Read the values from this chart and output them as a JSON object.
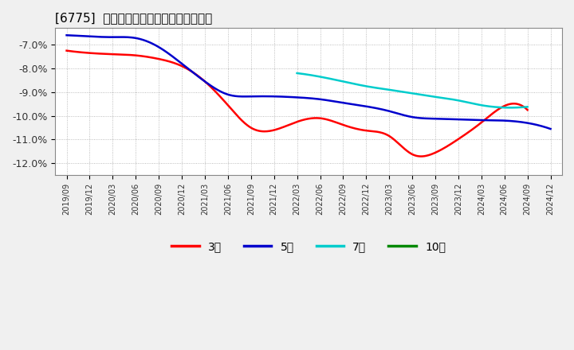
{
  "title": "[6775]  経常利益マージンの平均値の推移",
  "outer_bg": "#f0f0f0",
  "plot_bg": "#ffffff",
  "ylim": [
    -12.5,
    -6.3
  ],
  "yticks": [
    -12.0,
    -11.0,
    -10.0,
    -9.0,
    -8.0,
    -7.0
  ],
  "series_3": {
    "color": "#ff0000",
    "x": [
      0,
      1,
      2,
      3,
      4,
      5,
      6,
      7,
      8,
      9,
      10,
      11,
      12,
      13,
      14,
      15,
      16,
      17,
      18,
      19,
      20
    ],
    "y": [
      -7.25,
      -7.35,
      -7.4,
      -7.45,
      -7.6,
      -7.9,
      -8.55,
      -9.55,
      -10.5,
      -10.6,
      -10.25,
      -10.1,
      -10.38,
      -10.62,
      -10.85,
      -11.62,
      -11.55,
      -10.98,
      -10.28,
      -9.58,
      -9.75
    ]
  },
  "series_5": {
    "color": "#0000cc",
    "x": [
      0,
      1,
      2,
      3,
      4,
      5,
      6,
      7,
      8,
      9,
      10,
      11,
      12,
      13,
      14,
      15,
      16,
      17,
      18,
      19,
      20,
      21
    ],
    "y": [
      -6.6,
      -6.65,
      -6.68,
      -6.72,
      -7.1,
      -7.8,
      -8.55,
      -9.1,
      -9.18,
      -9.18,
      -9.22,
      -9.3,
      -9.45,
      -9.6,
      -9.8,
      -10.05,
      -10.12,
      -10.15,
      -10.18,
      -10.2,
      -10.3,
      -10.55
    ]
  },
  "series_7": {
    "color": "#00cccc",
    "x": [
      10,
      11,
      12,
      13,
      14,
      15,
      16,
      17,
      18,
      19,
      20
    ],
    "y": [
      -8.2,
      -8.35,
      -8.55,
      -8.75,
      -8.9,
      -9.05,
      -9.2,
      -9.35,
      -9.55,
      -9.65,
      -9.62
    ]
  },
  "series_10": {
    "color": "#008800",
    "x": [],
    "y": []
  },
  "xtick_labels": [
    "2019/09",
    "2019/12",
    "2020/03",
    "2020/06",
    "2020/09",
    "2020/12",
    "2021/03",
    "2021/06",
    "2021/09",
    "2021/12",
    "2022/03",
    "2022/06",
    "2022/09",
    "2022/12",
    "2023/03",
    "2023/06",
    "2023/09",
    "2023/12",
    "2024/03",
    "2024/06",
    "2024/09",
    "2024/12"
  ],
  "legend_labels": [
    "3年",
    "5年",
    "7年",
    "10年"
  ],
  "legend_colors": [
    "#ff0000",
    "#0000cc",
    "#00cccc",
    "#008800"
  ],
  "line_width": 1.8
}
